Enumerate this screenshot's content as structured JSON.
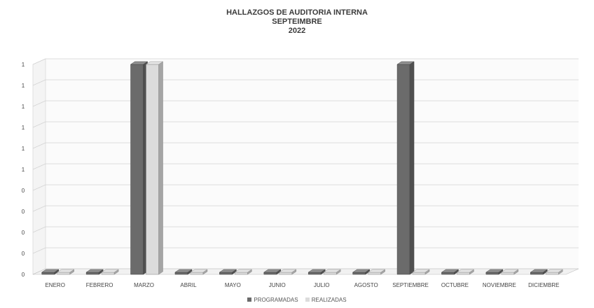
{
  "chart_data": {
    "type": "bar",
    "title": "HALLAZGOS DE AUDITORIA INTERNA",
    "subtitle": "SEPTEIMBRE",
    "subtitle2": "2022",
    "categories": [
      "ENERO",
      "FEBRERO",
      "MARZO",
      "ABRIL",
      "MAYO",
      "JUNIO",
      "JULIO",
      "AGOSTO",
      "SEPTIEMBRE",
      "OCTUBRE",
      "NOVIEMBRE",
      "DICIEMBRE"
    ],
    "series": [
      {
        "name": "PROGRAMADAS",
        "values": [
          0,
          0,
          1,
          0,
          0,
          0,
          0,
          0,
          1,
          0,
          0,
          0
        ],
        "color": "#6b6b6b"
      },
      {
        "name": "REALIZADAS",
        "values": [
          0,
          0,
          1,
          0,
          0,
          0,
          0,
          0,
          0,
          0,
          0,
          0
        ],
        "color": "#dcdcdc"
      }
    ],
    "ytick_labels": [
      "0",
      "0",
      "0",
      "0",
      "0",
      "1",
      "1",
      "1",
      "1",
      "1",
      "1"
    ],
    "ylim": [
      0,
      1
    ],
    "grid": true,
    "legend_position": "bottom",
    "style": "3d-column"
  }
}
